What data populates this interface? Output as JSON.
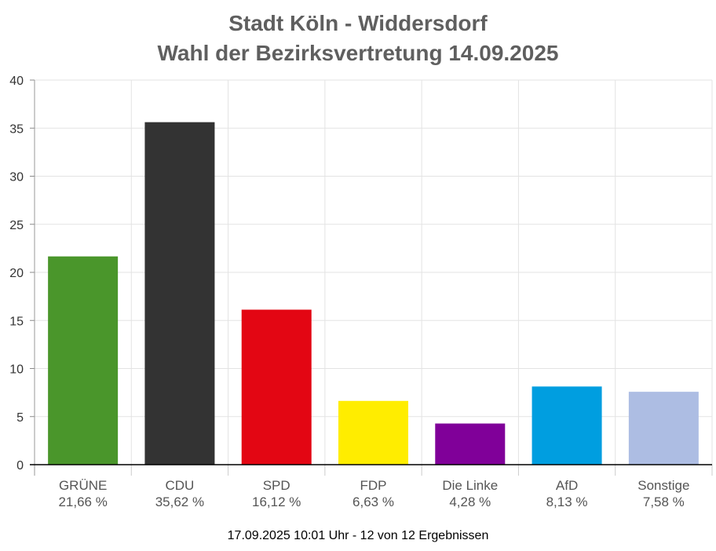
{
  "chart_data": {
    "type": "bar",
    "title": "Stadt Köln - Widdersdorf",
    "subtitle": "Wahl der Bezirksvertretung 14.09.2025",
    "categories": [
      "GRÜNE",
      "CDU",
      "SPD",
      "FDP",
      "Die Linke",
      "AfD",
      "Sonstige"
    ],
    "values": [
      21.66,
      35.62,
      16.12,
      6.63,
      4.28,
      8.13,
      7.58
    ],
    "value_labels": [
      "21,66 %",
      "35,62 %",
      "16,12 %",
      "6,63 %",
      "4,28 %",
      "8,13 %",
      "7,58 %"
    ],
    "colors": [
      "#4a962b",
      "#333333",
      "#e30613",
      "#ffed00",
      "#800099",
      "#009ee0",
      "#adbde3"
    ],
    "ylim": [
      0,
      40
    ],
    "yticks": [
      0,
      5,
      10,
      15,
      20,
      25,
      30,
      35,
      40
    ],
    "xlabel": "",
    "ylabel": "",
    "grid": true,
    "legend": "none"
  },
  "footer": "17.09.2025 10:01 Uhr - 12 von 12 Ergebnissen"
}
